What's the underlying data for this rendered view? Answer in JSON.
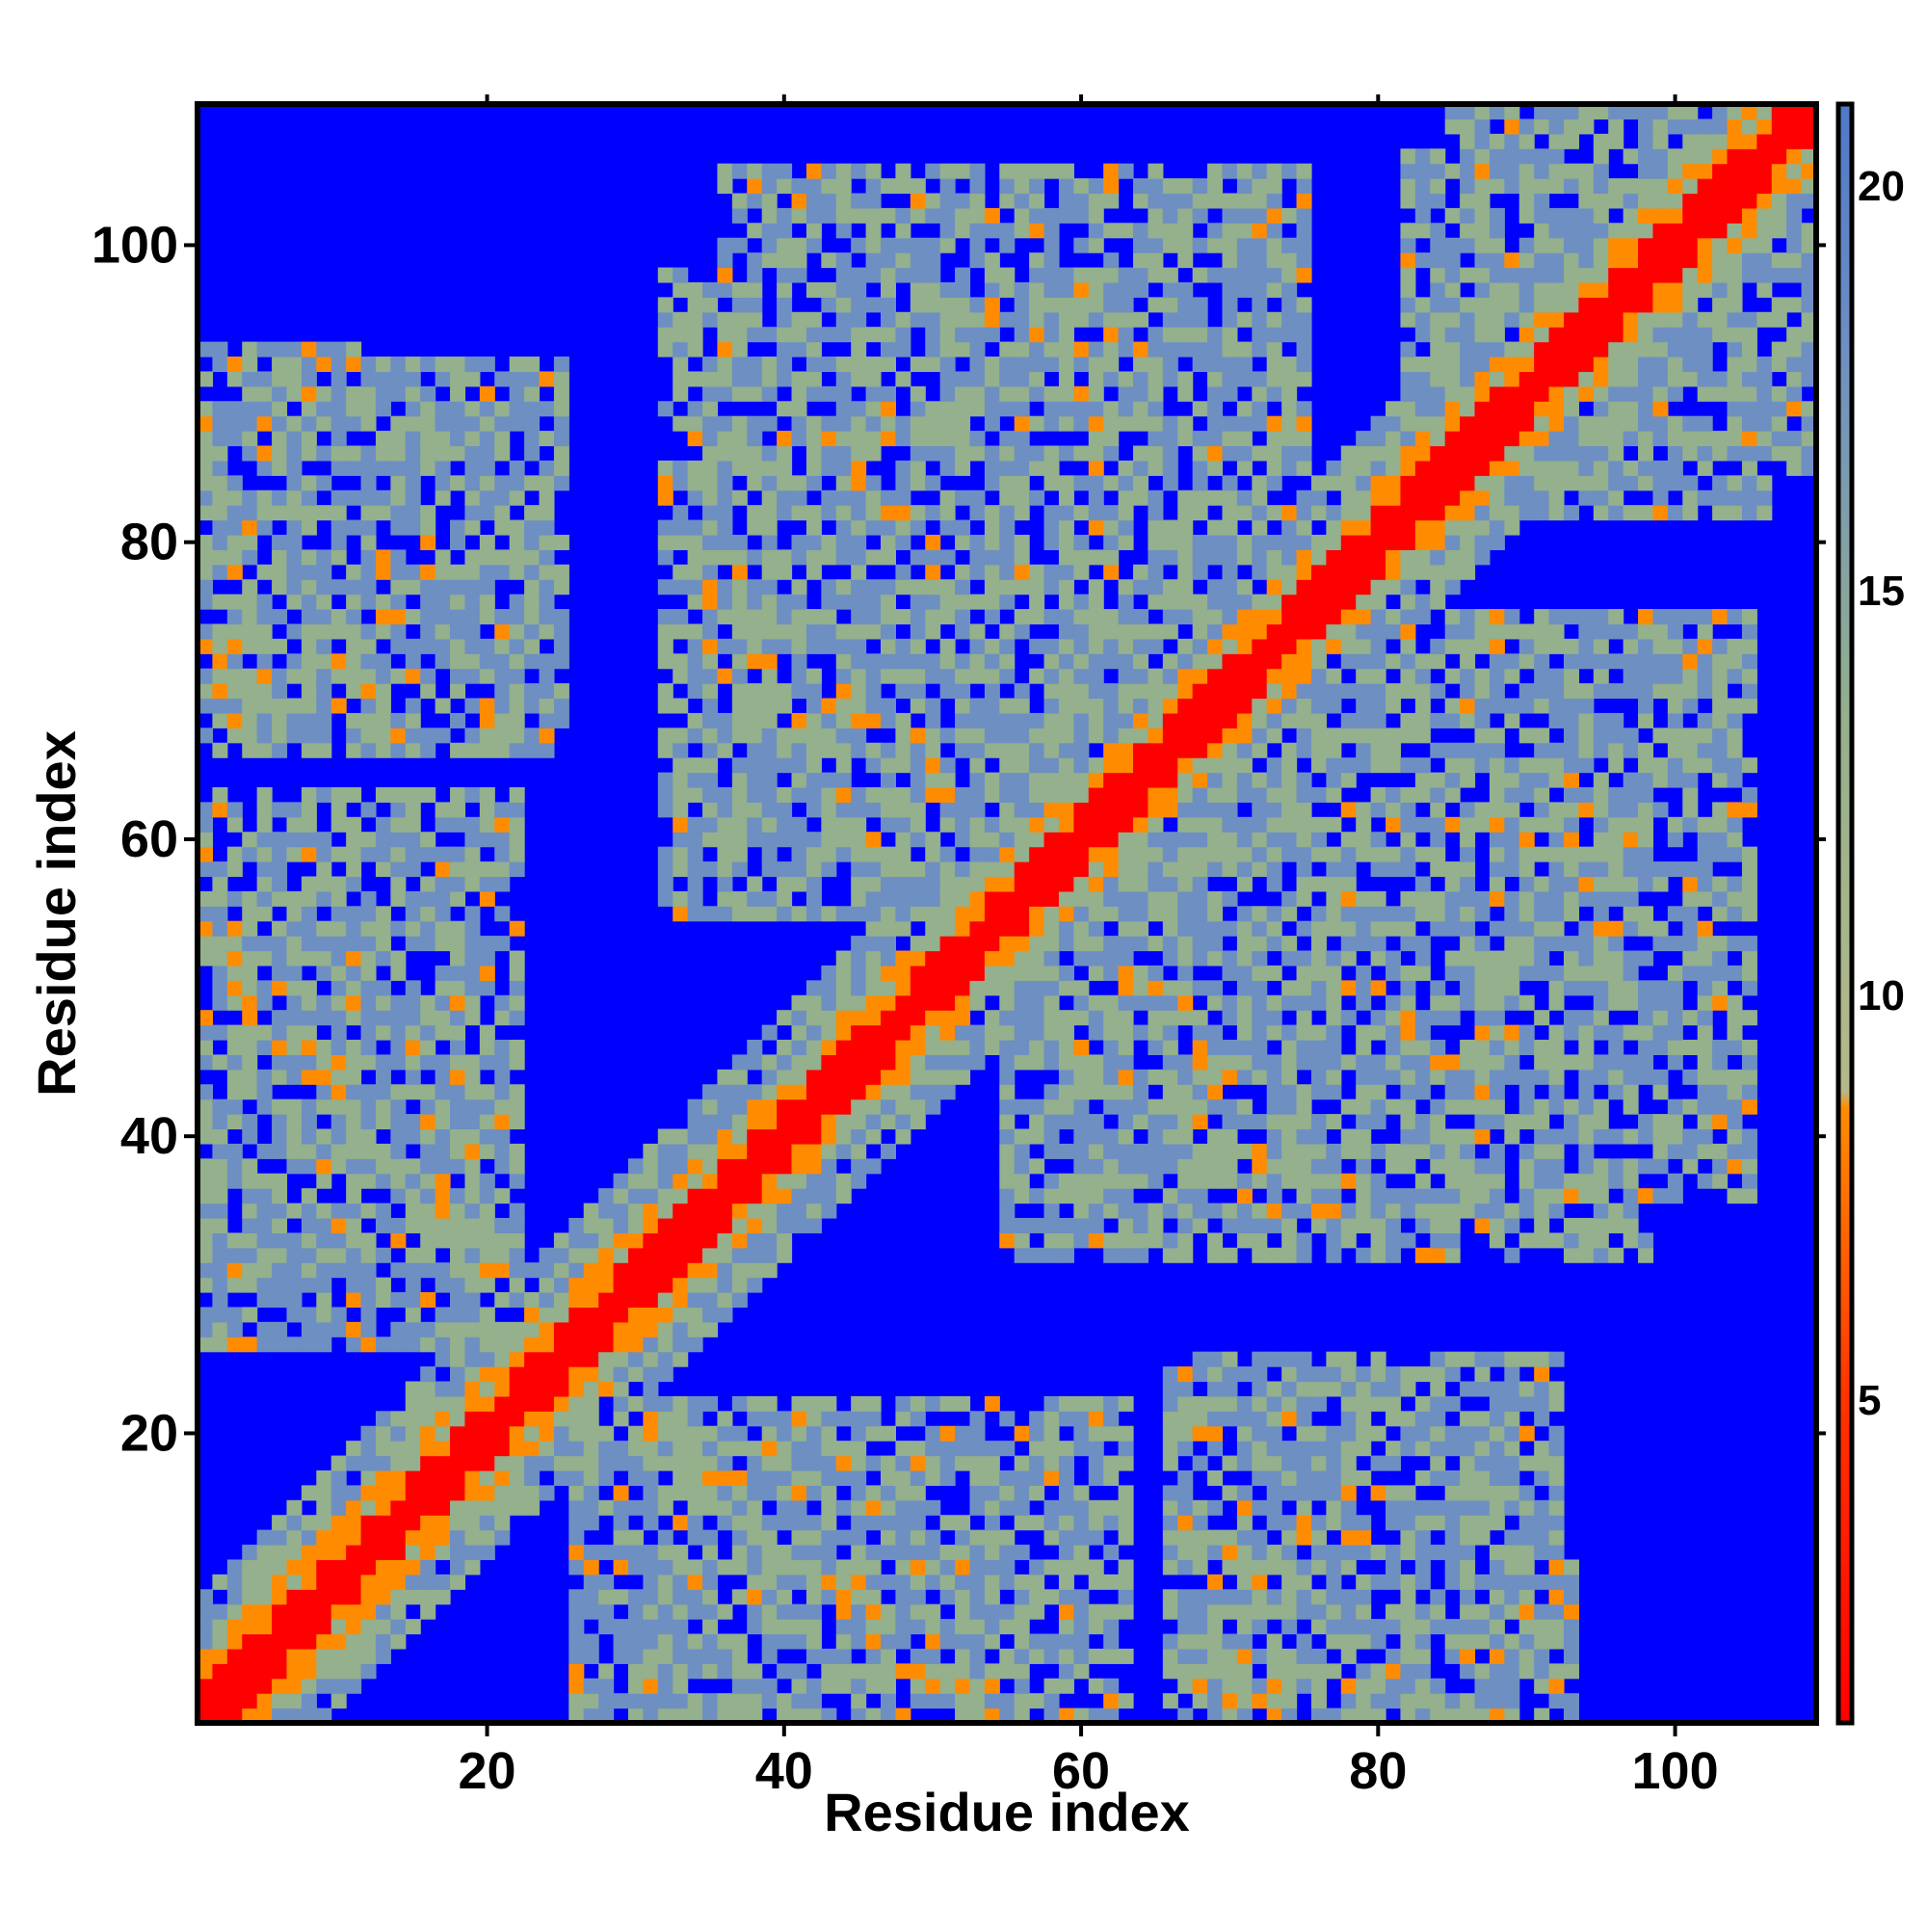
{
  "chart_data": {
    "type": "heatmap",
    "title": "",
    "xlabel": "Residue index",
    "ylabel": "Residue index",
    "x_range": [
      1,
      109
    ],
    "y_range": [
      1,
      109
    ],
    "x_ticks": [
      20,
      40,
      60,
      80,
      100
    ],
    "y_ticks": [
      20,
      40,
      60,
      80,
      100
    ],
    "colorbar": {
      "ticks": [
        5,
        10,
        15,
        20
      ],
      "range": [
        1,
        21
      ],
      "colors": {
        "near": "#ff0000",
        "mid": "#ff8c00",
        "far": "#94b08c",
        "farther": "#6e8fc2",
        "beyond": "#0000ff"
      }
    },
    "values_description": "symmetric residue-residue distance map",
    "contact_blocks": [
      {
        "xmin": 1,
        "xmax": 12,
        "ymin": 68,
        "ymax": 93,
        "level": 12
      },
      {
        "xmin": 36,
        "xmax": 75,
        "ymin": 68,
        "ymax": 105,
        "level": 12
      },
      {
        "xmin": 85,
        "xmax": 106,
        "ymin": 82,
        "ymax": 109,
        "level": 12
      },
      {
        "xmin": 1,
        "xmax": 22,
        "ymin": 28,
        "ymax": 63,
        "level": 12
      },
      {
        "xmin": 55,
        "xmax": 98,
        "ymin": 32,
        "ymax": 70,
        "level": 12
      },
      {
        "xmin": 26,
        "xmax": 52,
        "ymin": 1,
        "ymax": 22,
        "level": 12
      },
      {
        "xmin": 66,
        "xmax": 92,
        "ymin": 1,
        "ymax": 25,
        "level": 12
      }
    ],
    "close_contacts": [
      {
        "x": 3,
        "y": 54,
        "value": 6
      },
      {
        "x": 6,
        "y": 50,
        "value": 6
      },
      {
        "x": 8,
        "y": 46,
        "value": 6
      },
      {
        "x": 10,
        "y": 43,
        "value": 6
      },
      {
        "x": 17,
        "y": 36,
        "value": 6
      },
      {
        "x": 20,
        "y": 31,
        "value": 6
      },
      {
        "x": 23,
        "y": 28,
        "value": 6
      },
      {
        "x": 28,
        "y": 23,
        "value": 6
      },
      {
        "x": 31,
        "y": 20,
        "value": 6
      },
      {
        "x": 35,
        "y": 17,
        "value": 6
      },
      {
        "x": 44,
        "y": 8,
        "value": 6
      },
      {
        "x": 46,
        "y": 6,
        "value": 6
      },
      {
        "x": 48,
        "y": 4,
        "value": 6
      },
      {
        "x": 52,
        "y": 3,
        "value": 6
      },
      {
        "x": 45,
        "y": 85,
        "value": 6
      },
      {
        "x": 48,
        "y": 82,
        "value": 6
      },
      {
        "x": 47,
        "y": 89,
        "value": 6
      },
      {
        "x": 54,
        "y": 95,
        "value": 6
      },
      {
        "x": 57,
        "y": 94,
        "value": 6
      },
      {
        "x": 61,
        "y": 88,
        "value": 6
      },
      {
        "x": 69,
        "y": 86,
        "value": 6
      },
      {
        "x": 74,
        "y": 82,
        "value": 6
      },
      {
        "x": 82,
        "y": 47,
        "value": 6
      },
      {
        "x": 84,
        "y": 45,
        "value": 6
      },
      {
        "x": 87,
        "y": 43,
        "value": 6
      },
      {
        "x": 88,
        "y": 56,
        "value": 6
      },
      {
        "x": 93,
        "y": 60,
        "value": 6
      },
      {
        "x": 96,
        "y": 54,
        "value": 6
      },
      {
        "x": 77,
        "y": 35,
        "value": 6
      },
      {
        "x": 72,
        "y": 38,
        "value": 6
      },
      {
        "x": 80,
        "y": 16,
        "value": 6
      },
      {
        "x": 86,
        "y": 5,
        "value": 6
      },
      {
        "x": 16,
        "y": 78,
        "value": 6
      },
      {
        "x": 5,
        "y": 86,
        "value": 6
      },
      {
        "x": 35,
        "y": 76,
        "value": 6
      },
      {
        "x": 38,
        "y": 72,
        "value": 6
      }
    ]
  }
}
